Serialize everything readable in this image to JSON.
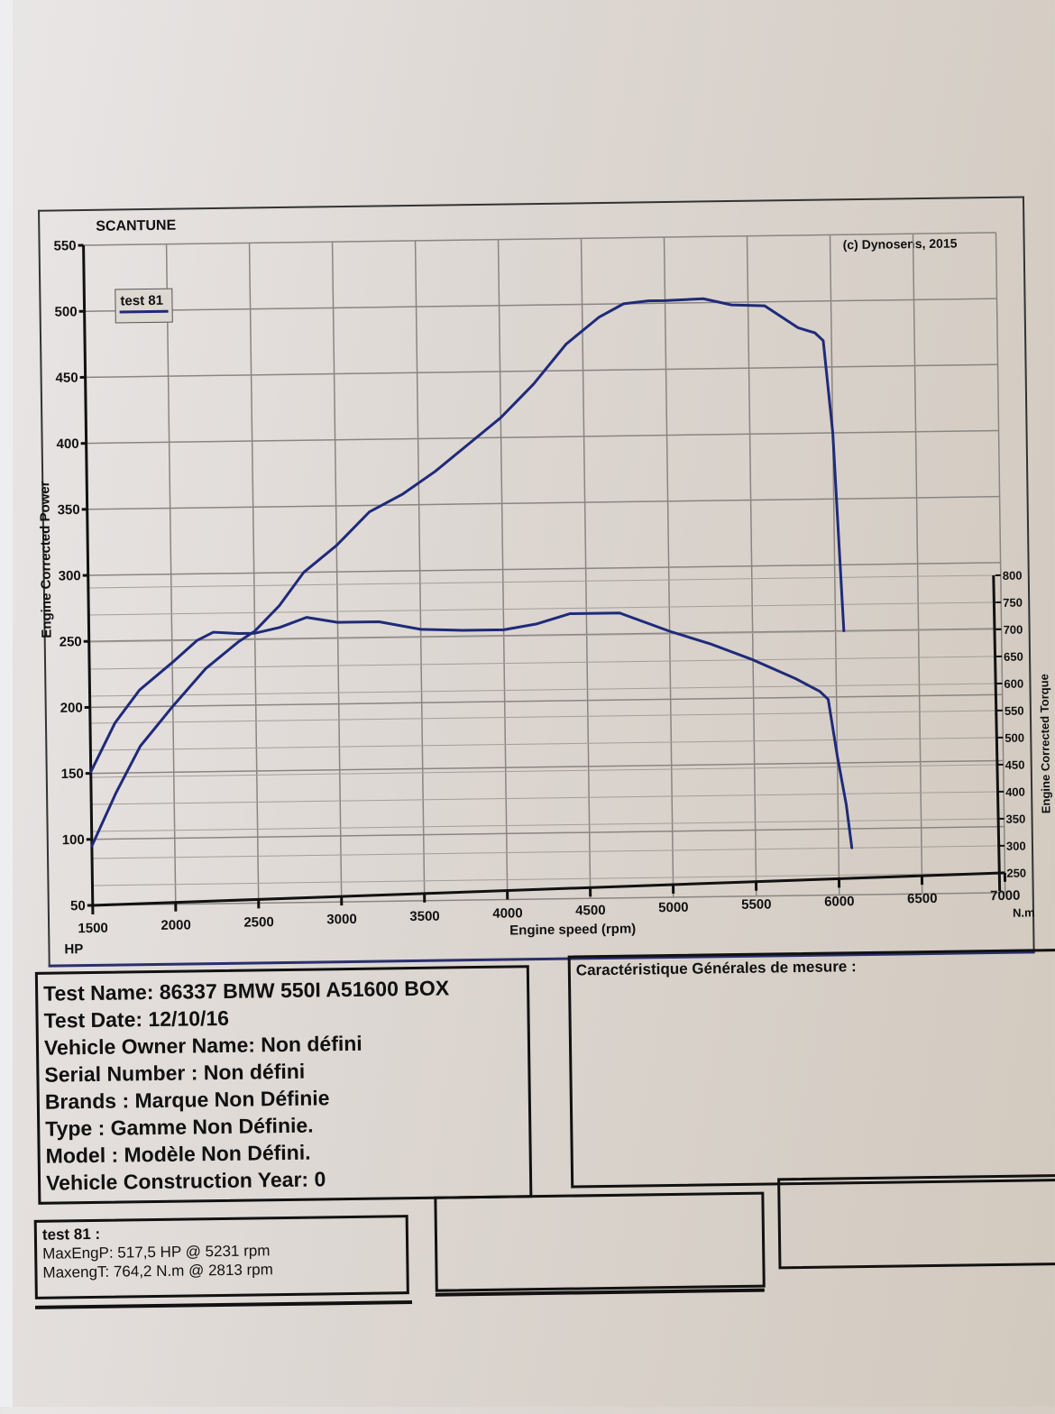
{
  "header": {
    "brand": "SCANTUNE",
    "copyright": "(c) Dynosens, 2015"
  },
  "legend": {
    "label": "test 81",
    "color": "#1f2a7a"
  },
  "axes": {
    "left_label": "Engine Corrected Power",
    "left_unit": "HP",
    "right_label": "Engine Corrected Torque",
    "right_unit": "N.m",
    "x_label": "Engine speed (rpm)"
  },
  "chart_data": {
    "type": "line",
    "title": "SCANTUNE",
    "xlabel": "Engine speed (rpm)",
    "ylabel": "Engine Corrected Power (HP)",
    "y2label": "Engine Corrected Torque (N.m)",
    "xlim": [
      1500,
      7000
    ],
    "ylim": [
      50,
      550
    ],
    "y2lim": [
      250,
      800
    ],
    "x_ticks": [
      1500,
      2000,
      2500,
      3000,
      3500,
      4000,
      4500,
      5000,
      5500,
      6000,
      6500,
      7000
    ],
    "y_ticks": [
      50,
      100,
      150,
      200,
      250,
      300,
      350,
      400,
      450,
      500,
      550
    ],
    "y2_ticks": [
      250,
      300,
      350,
      400,
      450,
      500,
      550,
      600,
      650,
      700,
      750,
      800
    ],
    "grid": true,
    "legend_position": "top-left",
    "series": [
      {
        "name": "test 81 - Power (HP)",
        "axis": "left",
        "x": [
          1500,
          1650,
          1800,
          2000,
          2200,
          2400,
          2500,
          2650,
          2800,
          3000,
          3200,
          3400,
          3600,
          3800,
          4000,
          4200,
          4400,
          4600,
          4750,
          4900,
          5000,
          5231,
          5400,
          5600,
          5800,
          5900,
          5950,
          6000,
          6050
        ],
        "values": [
          95,
          135,
          170,
          200,
          228,
          248,
          256,
          275,
          300,
          320,
          345,
          358,
          375,
          395,
          415,
          440,
          470,
          490,
          500,
          502,
          502,
          503,
          498,
          497,
          480,
          476,
          470,
          400,
          250
        ]
      },
      {
        "name": "test 81 - Torque (N.m)",
        "axis": "right",
        "x": [
          1500,
          1650,
          1800,
          2000,
          2150,
          2250,
          2400,
          2500,
          2650,
          2813,
          3000,
          3250,
          3500,
          3750,
          4000,
          4200,
          4400,
          4700,
          5000,
          5250,
          5500,
          5750,
          5900,
          5950,
          6000,
          6050,
          6080
        ],
        "values": [
          460,
          550,
          610,
          660,
          700,
          715,
          712,
          712,
          722,
          740,
          730,
          730,
          715,
          712,
          712,
          722,
          740,
          740,
          705,
          680,
          650,
          615,
          590,
          575,
          470,
          380,
          300
        ]
      }
    ]
  },
  "info": {
    "test_name": "Test Name: 86337 BMW 550I A51600 BOX",
    "test_date": "Test Date: 12/10/16",
    "owner": "Vehicle Owner Name: Non défini",
    "serial": "Serial Number  : Non défini",
    "brands": "Brands  : Marque Non Définie",
    "type": "Type  : Gamme Non Définie.",
    "model": "Model  : Modèle Non Défini.",
    "year": "Vehicle Construction Year: 0"
  },
  "characteristics": {
    "title": "Caractéristique Générales de mesure :"
  },
  "results": {
    "title": "test 81 :",
    "max_power": "MaxEngP: 517,5 HP @ 5231 rpm",
    "max_torque": "MaxengT: 764,2 N.m @ 2813 rpm"
  }
}
